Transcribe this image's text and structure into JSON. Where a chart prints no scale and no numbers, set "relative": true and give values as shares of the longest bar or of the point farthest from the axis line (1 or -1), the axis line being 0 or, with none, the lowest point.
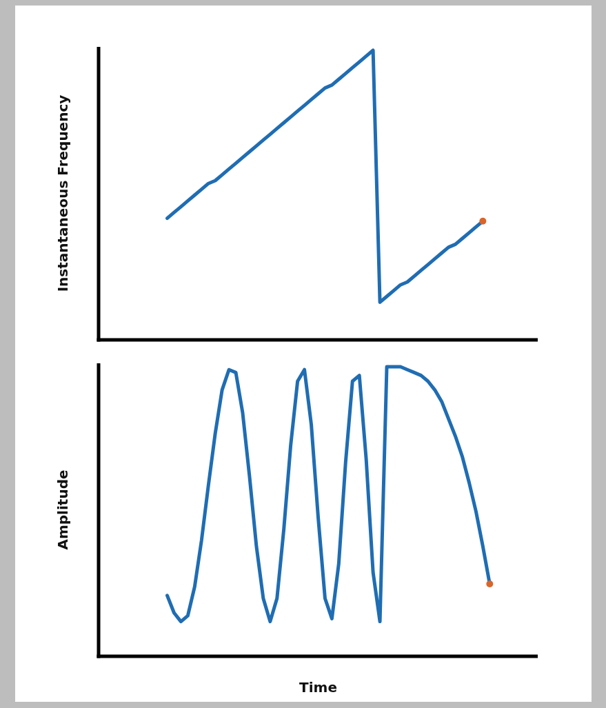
{
  "chart_data": [
    {
      "type": "line",
      "ylabel": "Instantaneous Frequency",
      "relative": true,
      "categories": [
        null,
        null,
        null,
        null,
        null,
        null,
        null,
        null,
        null,
        null,
        null,
        null,
        null,
        null,
        null,
        null,
        null,
        null,
        null,
        null,
        null,
        null,
        null,
        null,
        null,
        null,
        null,
        null,
        null,
        null,
        null,
        null,
        null,
        null,
        null,
        null,
        null,
        null,
        null,
        null,
        null,
        null,
        null,
        null,
        null,
        null,
        null,
        null,
        null,
        null,
        null,
        null,
        null,
        null,
        null,
        null,
        null,
        null,
        null,
        null,
        null,
        null,
        null,
        null,
        null
      ],
      "series": [
        {
          "color": "#1f6db3",
          "values": [
            null,
            null,
            null,
            null,
            null,
            null,
            null,
            null,
            null,
            null,
            0.42,
            0.44,
            0.46,
            0.48,
            0.5,
            0.52,
            0.54,
            0.55,
            0.57,
            0.59,
            0.61,
            0.63,
            0.65,
            0.67,
            0.69,
            0.71,
            0.73,
            0.75,
            0.77,
            0.79,
            0.81,
            0.83,
            0.85,
            0.87,
            0.88,
            0.9,
            0.92,
            0.94,
            0.96,
            0.98,
            1.0,
            0.13,
            0.15,
            0.17,
            0.19,
            0.2,
            0.22,
            0.24,
            0.26,
            0.28,
            0.3,
            0.32,
            0.33,
            0.35,
            0.37,
            0.39,
            0.41,
            null,
            null,
            null,
            null,
            null,
            null,
            null,
            null
          ]
        }
      ]
    },
    {
      "type": "line",
      "ylabel": "Amplitude",
      "xlabel": "Time",
      "relative": true,
      "categories": [
        null,
        null,
        null,
        null,
        null,
        null,
        null,
        null,
        null,
        null,
        null,
        null,
        null,
        null,
        null,
        null,
        null,
        null,
        null,
        null,
        null,
        null,
        null,
        null,
        null,
        null,
        null,
        null,
        null,
        null,
        null,
        null,
        null,
        null,
        null,
        null,
        null,
        null,
        null,
        null,
        null,
        null,
        null,
        null,
        null,
        null,
        null,
        null,
        null,
        null,
        null,
        null,
        null,
        null,
        null,
        null,
        null,
        null,
        null,
        null,
        null,
        null,
        null,
        null,
        null
      ],
      "series": [
        {
          "color": "#1f6db3",
          "values": [
            null,
            null,
            null,
            null,
            null,
            null,
            null,
            null,
            null,
            null,
            0.21,
            0.15,
            0.12,
            0.14,
            0.24,
            0.4,
            0.59,
            0.77,
            0.92,
            0.99,
            0.98,
            0.84,
            0.62,
            0.38,
            0.2,
            0.12,
            0.2,
            0.44,
            0.73,
            0.95,
            0.99,
            0.8,
            0.48,
            0.2,
            0.13,
            0.32,
            0.67,
            0.95,
            0.97,
            0.68,
            0.29,
            0.12,
            1.0,
            1.0,
            1.0,
            0.99,
            0.98,
            0.97,
            0.95,
            0.92,
            0.88,
            0.82,
            0.76,
            0.69,
            0.6,
            0.5,
            0.38,
            0.25,
            null,
            null,
            null,
            null,
            null,
            null,
            null
          ]
        }
      ]
    }
  ]
}
